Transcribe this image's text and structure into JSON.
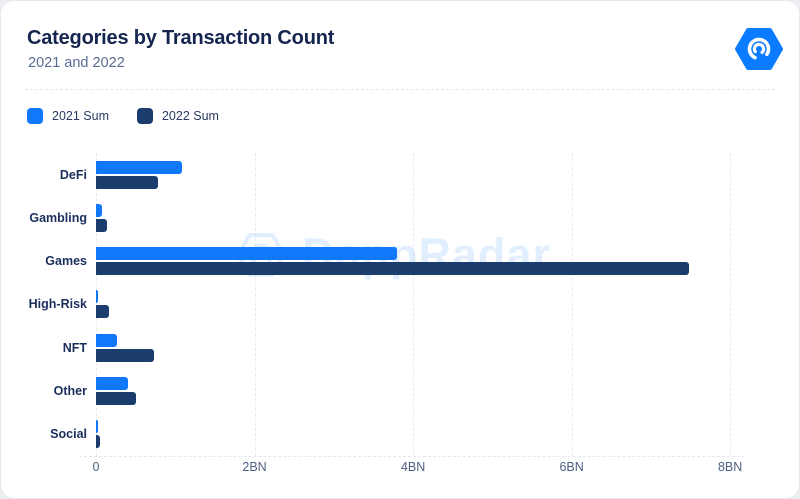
{
  "header": {
    "title": "Categories by Transaction Count",
    "subtitle": "2021 and 2022"
  },
  "logo": {
    "icon": "dappradar-hexagon-radar"
  },
  "legend": {
    "items": [
      {
        "label": "2021 Sum",
        "color": "#1178fa"
      },
      {
        "label": "2022 Sum",
        "color": "#1b3d6d"
      }
    ]
  },
  "watermark": {
    "text": "DappRadar",
    "icon": "dappradar-hexagon-radar"
  },
  "chart_data": {
    "type": "bar",
    "orientation": "horizontal",
    "title": "Categories by Transaction Count",
    "subtitle": "2021 and 2022",
    "unit": "BN (billions of transactions)",
    "categories": [
      "DeFi",
      "Gambling",
      "Games",
      "High-Risk",
      "NFT",
      "Other",
      "Social"
    ],
    "series": [
      {
        "name": "2021 Sum",
        "color": "#1178fa",
        "values": [
          1.09,
          0.08,
          3.8,
          0.02,
          0.27,
          0.4,
          0.02
        ]
      },
      {
        "name": "2022 Sum",
        "color": "#1b3d6d",
        "values": [
          0.78,
          0.14,
          7.48,
          0.17,
          0.73,
          0.51,
          0.05
        ]
      }
    ],
    "x_axis": {
      "max": 8.2,
      "ticks": [
        {
          "value": 0,
          "label": "0"
        },
        {
          "value": 2,
          "label": "2BN"
        },
        {
          "value": 4,
          "label": "4BN"
        },
        {
          "value": 6,
          "label": "6BN"
        },
        {
          "value": 8,
          "label": "8BN"
        }
      ]
    },
    "grid": "vertical-dashed",
    "legend_position": "top-left"
  },
  "colors": {
    "accent_blue": "#1178fa",
    "navy": "#1b3d6d",
    "title_text": "#14254f",
    "muted_text": "#5a6b94",
    "grid_line": "#e9ebf0",
    "card_background": "#ffffff",
    "page_background": "#edeef1"
  }
}
